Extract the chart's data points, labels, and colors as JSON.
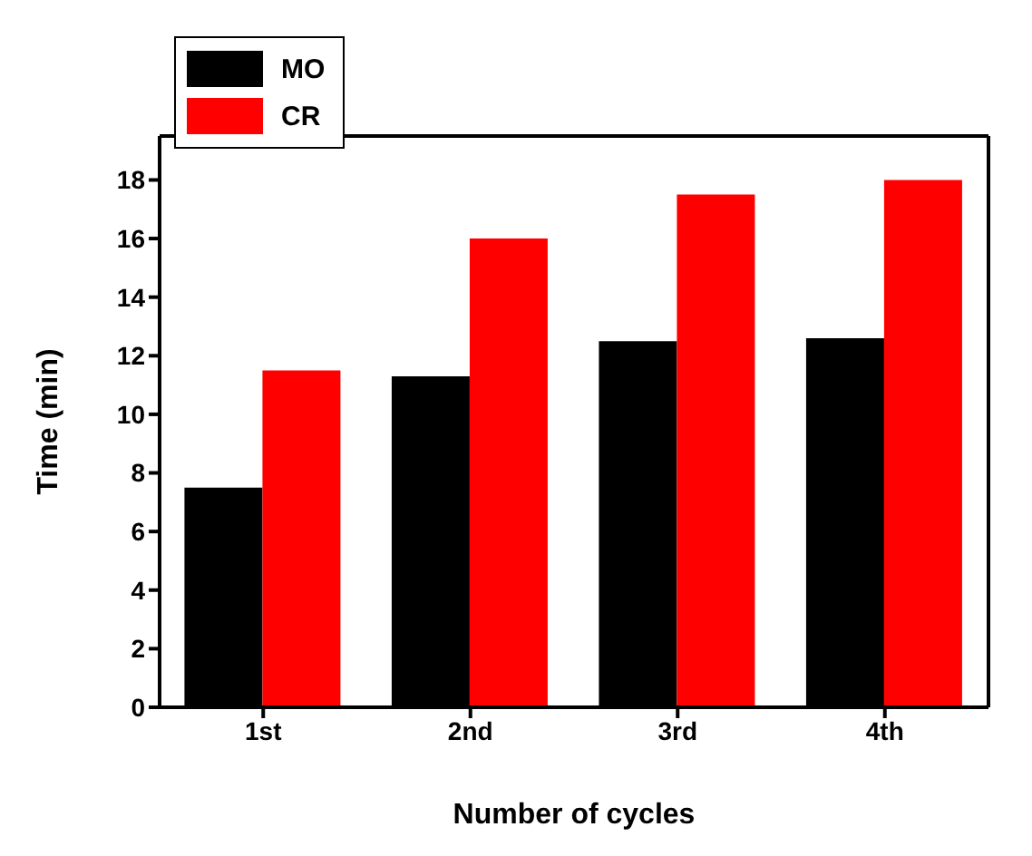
{
  "chart_data": {
    "type": "bar",
    "xlabel": "Number of cycles",
    "ylabel": "Time (min)",
    "categories": [
      "1st",
      "2nd",
      "3rd",
      "4th"
    ],
    "series": [
      {
        "name": "MO",
        "color": "#000000",
        "values": [
          7.5,
          11.3,
          12.5,
          12.6
        ]
      },
      {
        "name": "CR",
        "color": "#ff0000",
        "values": [
          11.5,
          16,
          17.5,
          18
        ]
      }
    ],
    "ylim": [
      0,
      19.5
    ],
    "yticks": [
      0,
      2,
      4,
      6,
      8,
      10,
      12,
      14,
      16,
      18
    ],
    "grid": false,
    "legend": "top left"
  }
}
